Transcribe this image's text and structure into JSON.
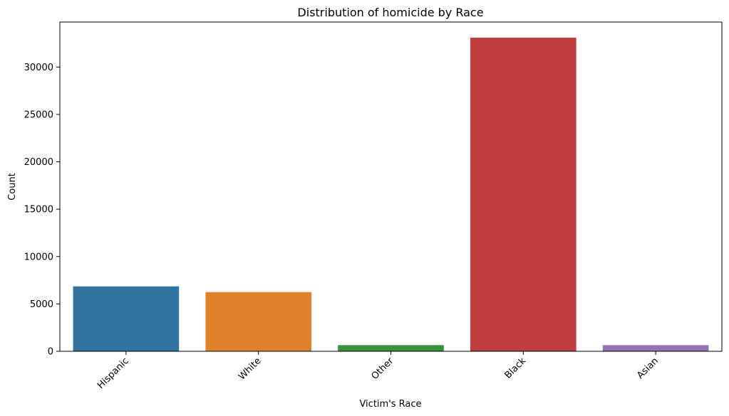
{
  "chart_data": {
    "type": "bar",
    "title": "Distribution of homicide by Race",
    "xlabel": "Victim's Race",
    "ylabel": "Count",
    "categories": [
      "Hispanic",
      "White",
      "Other",
      "Black",
      "Asian"
    ],
    "values": [
      6850,
      6250,
      650,
      33100,
      650
    ],
    "colors": [
      "#3274a1",
      "#e1812c",
      "#3a923a",
      "#c03d3e",
      "#9372b2"
    ],
    "ylim": [
      0,
      34750
    ],
    "yticks": [
      0,
      5000,
      10000,
      15000,
      20000,
      25000,
      30000
    ],
    "grid": false,
    "xtick_rotation": 45
  }
}
